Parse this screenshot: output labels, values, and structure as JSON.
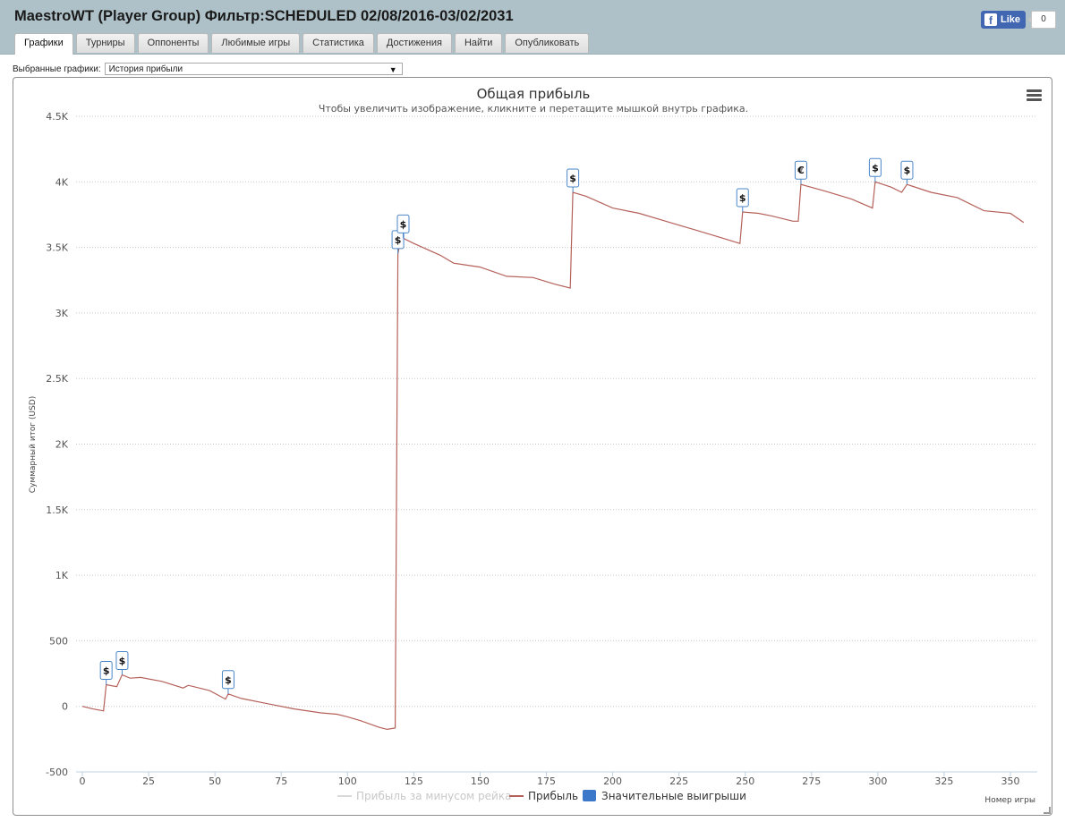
{
  "header": {
    "title": "MaestroWT (Player Group) Фильтр:SCHEDULED 02/08/2016-03/02/2031",
    "tabs": [
      {
        "label": "Графики",
        "active": true
      },
      {
        "label": "Турниры",
        "active": false
      },
      {
        "label": "Оппоненты",
        "active": false
      },
      {
        "label": "Любимые игры",
        "active": false
      },
      {
        "label": "Статистика",
        "active": false
      },
      {
        "label": "Достижения",
        "active": false
      },
      {
        "label": "Найти",
        "active": false
      },
      {
        "label": "Опубликовать",
        "active": false
      }
    ],
    "facebook": {
      "like_label": "Like",
      "count": "0"
    }
  },
  "selector": {
    "label": "Выбранные графики:",
    "value": "История прибыли"
  },
  "colors": {
    "header_bg": "#aec1c8",
    "profit_line": "#b5615a",
    "rake_line": "#d9d9d9",
    "marker_border": "#4a86c8",
    "big_wins": "#3b78c9"
  },
  "icons": {
    "menu": "hamburger-menu-icon",
    "facebook": "facebook-f-icon",
    "dropdown": "dropdown-arrow-icon"
  },
  "chart_data": {
    "type": "line",
    "title": "Общая прибыль",
    "subtitle": "Чтобы увеличить изображение, кликните и перетащите мышкой внутрь графика.",
    "xlabel": "Номер игры",
    "ylabel": "Суммарный итог (USD)",
    "xlim": [
      0,
      360
    ],
    "ylim": [
      -500,
      4500
    ],
    "x_ticks": [
      0,
      25,
      50,
      75,
      100,
      125,
      150,
      175,
      200,
      225,
      250,
      275,
      300,
      325,
      350
    ],
    "y_ticks": [
      -500,
      0,
      500,
      1000,
      1500,
      2000,
      2500,
      3000,
      3500,
      4000,
      4500
    ],
    "y_tick_labels": [
      "-500",
      "0",
      "500",
      "1K",
      "1.5K",
      "2K",
      "2.5K",
      "3K",
      "3.5K",
      "4K",
      "4.5K"
    ],
    "grid": "horizontal-dotted",
    "legend_position": "bottom-center",
    "legend": [
      {
        "name": "Прибыль за минусом рейка",
        "symbol": "line",
        "visible": false
      },
      {
        "name": "Прибыль",
        "symbol": "line",
        "visible": true
      },
      {
        "name": "Значительные выигрыши",
        "symbol": "box",
        "visible": true
      }
    ],
    "series": [
      {
        "name": "Прибыль",
        "points": [
          [
            0,
            0
          ],
          [
            4,
            -20
          ],
          [
            8,
            -35
          ],
          [
            9,
            165
          ],
          [
            13,
            150
          ],
          [
            15,
            240
          ],
          [
            18,
            215
          ],
          [
            22,
            220
          ],
          [
            30,
            190
          ],
          [
            38,
            140
          ],
          [
            40,
            160
          ],
          [
            48,
            120
          ],
          [
            54,
            55
          ],
          [
            55,
            95
          ],
          [
            60,
            60
          ],
          [
            70,
            20
          ],
          [
            80,
            -20
          ],
          [
            90,
            -50
          ],
          [
            96,
            -60
          ],
          [
            100,
            -80
          ],
          [
            105,
            -110
          ],
          [
            112,
            -160
          ],
          [
            115,
            -175
          ],
          [
            118,
            -165
          ],
          [
            119,
            3450
          ],
          [
            120,
            3550
          ],
          [
            121,
            3570
          ],
          [
            125,
            3530
          ],
          [
            135,
            3440
          ],
          [
            140,
            3380
          ],
          [
            150,
            3350
          ],
          [
            160,
            3280
          ],
          [
            170,
            3270
          ],
          [
            178,
            3220
          ],
          [
            184,
            3190
          ],
          [
            185,
            3920
          ],
          [
            190,
            3890
          ],
          [
            200,
            3800
          ],
          [
            210,
            3760
          ],
          [
            220,
            3700
          ],
          [
            230,
            3640
          ],
          [
            240,
            3580
          ],
          [
            248,
            3530
          ],
          [
            249,
            3770
          ],
          [
            255,
            3760
          ],
          [
            260,
            3740
          ],
          [
            268,
            3700
          ],
          [
            270,
            3700
          ],
          [
            271,
            3980
          ],
          [
            280,
            3930
          ],
          [
            290,
            3870
          ],
          [
            298,
            3800
          ],
          [
            299,
            4000
          ],
          [
            305,
            3960
          ],
          [
            309,
            3920
          ],
          [
            311,
            3980
          ],
          [
            320,
            3920
          ],
          [
            330,
            3880
          ],
          [
            340,
            3780
          ],
          [
            350,
            3760
          ],
          [
            355,
            3690
          ]
        ]
      }
    ],
    "big_wins": [
      {
        "x": 9,
        "y": 165,
        "symbol": "$"
      },
      {
        "x": 15,
        "y": 240,
        "symbol": "$"
      },
      {
        "x": 55,
        "y": 95,
        "symbol": "$"
      },
      {
        "x": 119,
        "y": 3450,
        "symbol": "$"
      },
      {
        "x": 121,
        "y": 3570,
        "symbol": "$"
      },
      {
        "x": 185,
        "y": 3920,
        "symbol": "$"
      },
      {
        "x": 249,
        "y": 3770,
        "symbol": "$"
      },
      {
        "x": 271,
        "y": 3980,
        "symbol": "€"
      },
      {
        "x": 299,
        "y": 4000,
        "symbol": "$"
      },
      {
        "x": 311,
        "y": 3980,
        "symbol": "$"
      }
    ]
  }
}
